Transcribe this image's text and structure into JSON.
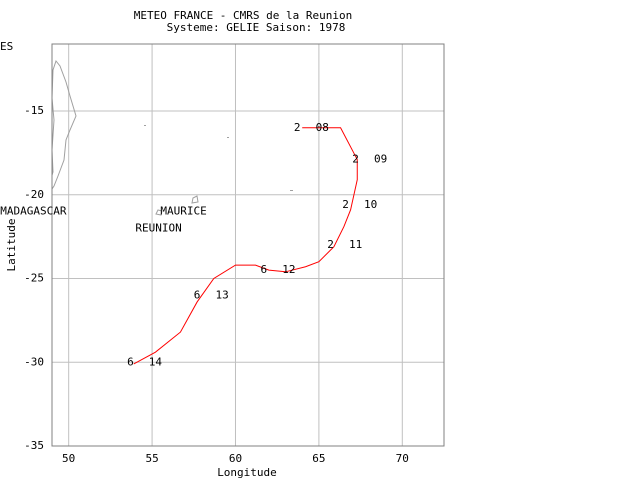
{
  "chart_data": {
    "type": "line",
    "title": "METEO FRANCE - CMRS de la Reunion",
    "subtitle": "Systeme: GELIE  Saison: 1978",
    "corner_label": "ES",
    "x_label": "Longitude",
    "y_label": "Latitude",
    "x": [
      64.0,
      66.3,
      67.3,
      67.3,
      66.9,
      66.5,
      65.9,
      65.0,
      64.2,
      63.0,
      62.0,
      61.2,
      60.0,
      58.7,
      57.7,
      56.7,
      55.2,
      53.9
    ],
    "values": [
      -16.0,
      -16.0,
      -17.9,
      -19.1,
      -20.9,
      -21.9,
      -23.1,
      -24.0,
      -24.3,
      -24.6,
      -24.5,
      -24.2,
      -24.2,
      -25.0,
      -26.4,
      -28.2,
      -29.4,
      -30.1
    ],
    "color": "#ff0000",
    "xlim": [
      49,
      72.5
    ],
    "ylim": [
      -35,
      -11
    ],
    "xticks": [
      50,
      55,
      60,
      65,
      70
    ],
    "yticks": [
      -35,
      -30,
      -25,
      -20,
      -15
    ],
    "grid": true,
    "annotations": [
      {
        "text": "2",
        "x": 63.7,
        "y": -16.0
      },
      {
        "text": "08",
        "x": 65.2,
        "y": -16.0
      },
      {
        "text": "2",
        "x": 67.2,
        "y": -17.9
      },
      {
        "text": "09",
        "x": 68.7,
        "y": -17.9
      },
      {
        "text": "2",
        "x": 66.6,
        "y": -20.6
      },
      {
        "text": "10",
        "x": 68.1,
        "y": -20.6
      },
      {
        "text": "2",
        "x": 65.7,
        "y": -23.0
      },
      {
        "text": "11",
        "x": 67.2,
        "y": -23.0
      },
      {
        "text": "6",
        "x": 61.7,
        "y": -24.5
      },
      {
        "text": "12",
        "x": 63.2,
        "y": -24.5
      },
      {
        "text": "6",
        "x": 57.7,
        "y": -26.0
      },
      {
        "text": "13",
        "x": 59.2,
        "y": -26.0
      },
      {
        "text": "6",
        "x": 53.7,
        "y": -30.0
      },
      {
        "text": "14",
        "x": 55.2,
        "y": -30.0
      }
    ],
    "places": [
      {
        "text": "MADAGASCAR",
        "x": 45.9,
        "y": -21.0
      },
      {
        "text": "MAURICE",
        "x": 55.5,
        "y": -21.0
      },
      {
        "text": "REUNION",
        "x": 54.0,
        "y": -22.0
      }
    ]
  }
}
